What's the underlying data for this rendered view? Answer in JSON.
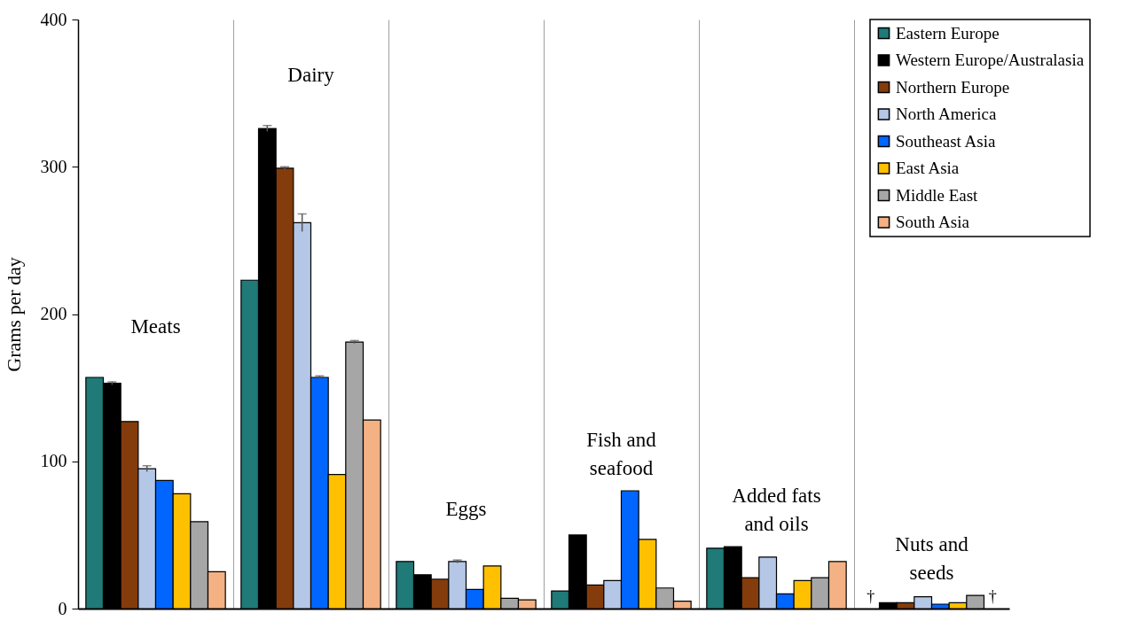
{
  "chart_data": {
    "type": "bar",
    "ylabel": "Grams per day",
    "categories": [
      "Meats",
      "Dairy",
      "Eggs",
      "Fish and seafood",
      "Added fats and oils",
      "Nuts and seeds"
    ],
    "series": [
      {
        "name": "Eastern Europe",
        "color": "#1f7a78",
        "values": [
          157,
          223,
          32,
          12,
          41,
          null
        ]
      },
      {
        "name": "Western Europe/Australasia",
        "color": "#000000",
        "values": [
          153,
          326,
          23,
          50,
          42,
          4
        ],
        "errors": [
          1,
          2,
          null,
          null,
          null,
          null
        ]
      },
      {
        "name": "Northern Europe",
        "color": "#843c0c",
        "values": [
          127,
          299,
          20,
          16,
          21,
          4
        ],
        "errors": [
          null,
          1,
          null,
          null,
          null,
          null
        ]
      },
      {
        "name": "North America",
        "color": "#b4c7e7",
        "values": [
          95,
          262,
          32,
          19,
          35,
          8
        ],
        "errors": [
          2,
          6,
          1,
          null,
          null,
          null
        ]
      },
      {
        "name": "Southeast Asia",
        "color": "#0066ff",
        "values": [
          87,
          157,
          13,
          80,
          10,
          3
        ],
        "errors": [
          null,
          1,
          null,
          null,
          null,
          null
        ]
      },
      {
        "name": "East Asia",
        "color": "#ffc000",
        "values": [
          78,
          91,
          29,
          47,
          19,
          4
        ]
      },
      {
        "name": "Middle East",
        "color": "#a6a6a6",
        "values": [
          59,
          181,
          7,
          14,
          21,
          9
        ],
        "errors": [
          null,
          1,
          null,
          null,
          null,
          null
        ]
      },
      {
        "name": "South Asia",
        "color": "#f4b183",
        "values": [
          25,
          128,
          6,
          5,
          32,
          null
        ]
      }
    ],
    "annotations": [
      "†",
      "†"
    ],
    "ylim": [
      0,
      400
    ],
    "yticks": [
      0,
      100,
      200,
      300,
      400
    ],
    "grid": "x",
    "legend": "top right",
    "tick_labels": "y"
  }
}
